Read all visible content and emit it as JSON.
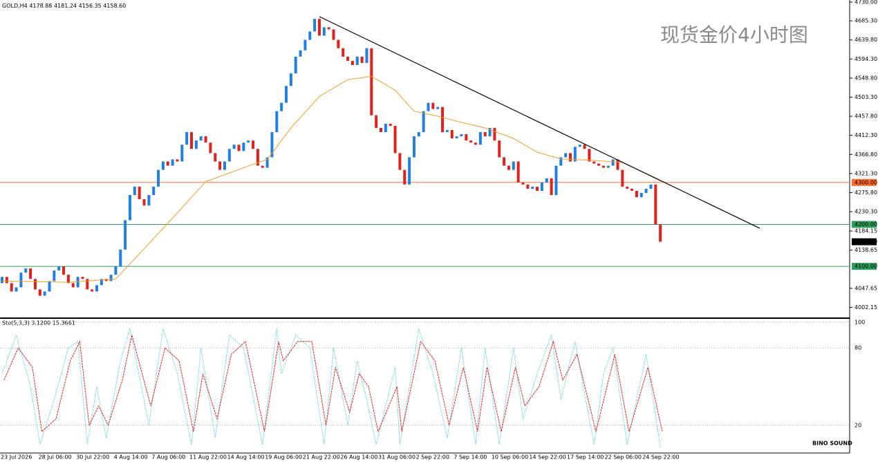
{
  "chart_data": {
    "type": "candlestick",
    "title": "GOLD,H4",
    "header_values": "4178.88 4181.24 4156.35 4158.60",
    "watermark": "现货金价4小时图",
    "logo": "BINO SOUND",
    "open": 4060,
    "close": [
      4075,
      4060,
      4040,
      4050,
      4085,
      4095,
      4070,
      4045,
      4030,
      4040,
      4065,
      4090,
      4100,
      4080,
      4060,
      4050,
      4075,
      4070,
      4045,
      4040,
      4055,
      4070,
      4065,
      4080,
      4100,
      4140,
      4210,
      4270,
      4290,
      4260,
      4245,
      4270,
      4290,
      4330,
      4350,
      4340,
      4355,
      4350,
      4390,
      4420,
      4380,
      4400,
      4410,
      4395,
      4370,
      4350,
      4330,
      4350,
      4380,
      4390,
      4375,
      4395,
      4400,
      4380,
      4340,
      4335,
      4360,
      4420,
      4470,
      4490,
      4530,
      4560,
      4600,
      4615,
      4640,
      4660,
      4690,
      4650,
      4670,
      4665,
      4640,
      4620,
      4600,
      4590,
      4580,
      4600,
      4585,
      4620,
      4460,
      4430,
      4420,
      4440,
      4435,
      4370,
      4330,
      4295,
      4360,
      4410,
      4420,
      4470,
      4490,
      4475,
      4480,
      4420,
      4425,
      4405,
      4410,
      4415,
      4400,
      4395,
      4390,
      4420,
      4410,
      4430,
      4400,
      4360,
      4340,
      4330,
      4350,
      4300,
      4295,
      4285,
      4290,
      4280,
      4300,
      4310,
      4270,
      4340,
      4360,
      4370,
      4350,
      4385,
      4390,
      4380,
      4350,
      4345,
      4340,
      4335,
      4340,
      4355,
      4330,
      4290,
      4285,
      4280,
      4265,
      4275,
      4285,
      4295,
      4200,
      4158.6
    ],
    "up_color": "#1e7fe6",
    "down_color": "#e3211c",
    "ylim": [
      3976.5,
      4735
    ],
    "yticks": [
      {
        "value": 4730,
        "label": "4730.00"
      },
      {
        "value": 4685.3,
        "label": "4685.30"
      },
      {
        "value": 4639.8,
        "label": "4639.80"
      },
      {
        "value": 4594.3,
        "label": "4594.30"
      },
      {
        "value": 4548.8,
        "label": "4548.80"
      },
      {
        "value": 4503.3,
        "label": "4503.30"
      },
      {
        "value": 4457.8,
        "label": "4457.80"
      },
      {
        "value": 4412.3,
        "label": "4412.30"
      },
      {
        "value": 4366.8,
        "label": "4366.80"
      },
      {
        "value": 4321.3,
        "label": "4321.30"
      },
      {
        "value": 4275.8,
        "label": "4275.80"
      },
      {
        "value": 4230.3,
        "label": "4230.30"
      },
      {
        "value": 4184.15,
        "label": "4184.15"
      },
      {
        "value": 4138.65,
        "label": "4138.65"
      },
      {
        "value": 4047.65,
        "label": "4047.65"
      },
      {
        "value": 4002.15,
        "label": "4002.15"
      }
    ],
    "levels": [
      {
        "value": 4300,
        "label": "4300.00",
        "color": "#ff6a2b"
      },
      {
        "value": 4200,
        "label": "4200.00",
        "color": "#2e9e5b"
      },
      {
        "value": 4100,
        "label": "4100.00",
        "color": "#2e9e5b"
      }
    ],
    "current": {
      "value": 4158.6,
      "label": "4158.60"
    },
    "trendline": {
      "x": [
        67,
        160
      ],
      "values": [
        4695.4,
        4190.8
      ]
    },
    "ma": {
      "color": "#f39c1f",
      "x": [
        0,
        14,
        24,
        29,
        36,
        43,
        51,
        56,
        61,
        67,
        73,
        78,
        83,
        87,
        92,
        96,
        102,
        108,
        113,
        118,
        124,
        131,
        139
      ],
      "values": [
        4065,
        4062,
        4070,
        4130,
        4215,
        4302,
        4335,
        4355,
        4430,
        4505,
        4545,
        4553,
        4520,
        4470,
        4458,
        4446,
        4430,
        4405,
        4372,
        4356,
        4353,
        4348,
        4304
      ]
    },
    "categories": [
      "23 Jul 2026",
      "28 Jul 06:00",
      "30 Jul 22:00",
      "4 Aug 14:00",
      "7 Aug 06:00",
      "11 Aug 22:00",
      "14 Aug 14:00",
      "19 Aug 06:00",
      "21 Aug 22:00",
      "26 Aug 14:00",
      "31 Aug 06:00",
      "2 Sep 22:00",
      "7 Sep 14:00",
      "10 Sep 06:00",
      "14 Sep 22:00",
      "17 Sep 14:00",
      "22 Sep 06:00",
      "24 Sep 22:00"
    ],
    "stochastic": {
      "label": "Sto(5,3,3) 3.1200 15.3661",
      "ylim": [
        -1.6,
        102.6
      ],
      "yticks": [
        100,
        80,
        20
      ],
      "x": [
        0,
        3,
        6,
        8,
        11,
        14,
        16,
        18,
        20,
        22,
        25,
        27,
        31,
        34,
        37,
        40,
        42,
        45,
        48,
        51,
        55,
        58,
        59,
        62,
        65,
        68,
        70,
        73,
        75,
        77,
        79,
        83,
        84,
        88,
        91,
        94,
        97,
        100,
        102,
        105,
        108,
        110,
        113,
        116,
        118,
        121,
        125,
        127,
        129,
        132,
        136,
        139
      ],
      "series": [
        {
          "color": "#3cc8d8",
          "values": [
            60,
            90,
            50,
            5,
            40,
            80,
            85,
            5,
            50,
            10,
            70,
            95,
            20,
            95,
            60,
            5,
            80,
            10,
            90,
            80,
            5,
            95,
            60,
            90,
            80,
            5,
            80,
            20,
            70,
            40,
            5,
            65,
            5,
            95,
            60,
            10,
            80,
            5,
            80,
            5,
            80,
            25,
            60,
            90,
            40,
            85,
            5,
            60,
            80,
            5,
            75,
            3.12
          ]
        },
        {
          "color": "#e3211c",
          "values": [
            55,
            80,
            65,
            15,
            25,
            70,
            85,
            20,
            35,
            20,
            55,
            90,
            35,
            80,
            70,
            15,
            60,
            25,
            75,
            85,
            15,
            85,
            70,
            85,
            85,
            20,
            65,
            30,
            60,
            50,
            15,
            50,
            15,
            85,
            70,
            20,
            65,
            15,
            65,
            15,
            65,
            35,
            50,
            85,
            55,
            75,
            15,
            45,
            75,
            15,
            65,
            15.37
          ]
        }
      ]
    }
  }
}
